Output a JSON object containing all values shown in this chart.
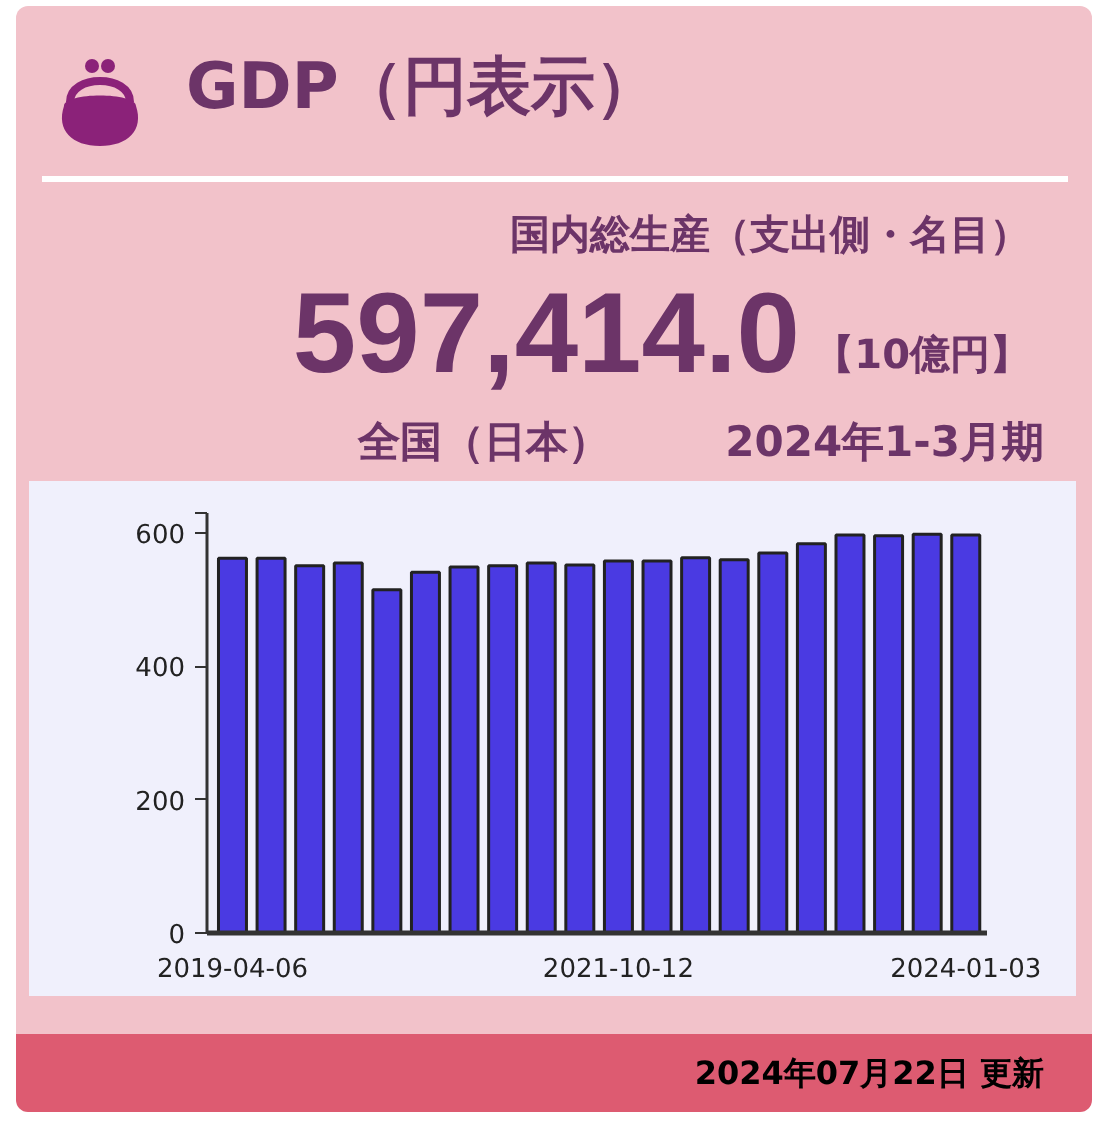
{
  "chart_data": {
    "type": "bar",
    "title": "GDP（円表示）",
    "subtitle": "国内総生産（支出側・名目）",
    "annotations": [
      "597,414.0",
      "【10億円】",
      "全国（日本）",
      "2024年1-3月期",
      "2024年07月22日 更新"
    ],
    "categories": [
      "2019-04-06",
      null,
      null,
      null,
      null,
      null,
      null,
      null,
      null,
      null,
      "2021-10-12",
      null,
      null,
      null,
      null,
      null,
      null,
      null,
      null,
      "2024-01-03"
    ],
    "values": [
      562,
      562,
      551,
      555,
      515,
      541,
      549,
      551,
      555,
      552,
      558,
      558,
      563,
      560,
      570,
      584,
      597,
      596,
      598,
      597
    ],
    "color": "#4a3ae2",
    "ylim": [
      0,
      630
    ],
    "yticks": [
      0,
      200,
      400,
      600,
      {
        "value": 630,
        "label": null
      }
    ]
  }
}
